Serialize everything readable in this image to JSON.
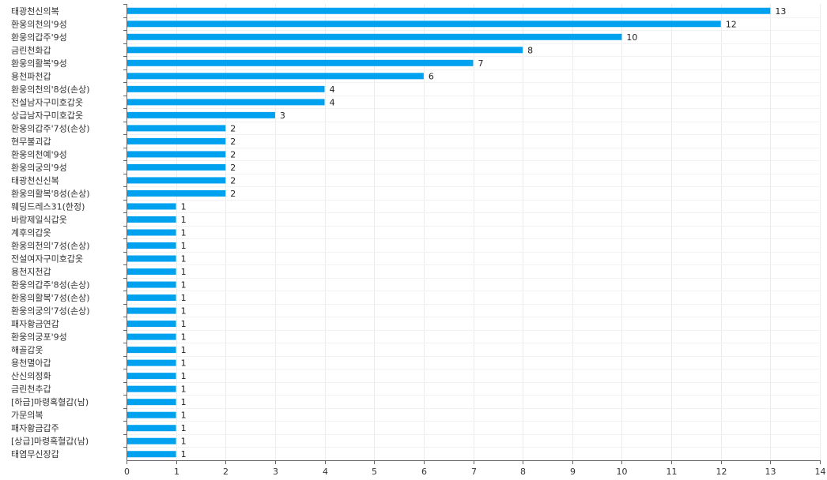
{
  "chart_data": {
    "type": "bar",
    "orientation": "horizontal",
    "categories": [
      "태광천신의복",
      "환웅의천의'9성",
      "환웅의갑주'9성",
      "금린천화갑",
      "환웅의활복'9성",
      "용천파천갑",
      "환웅의천의'8성(손상)",
      "전설남자구미호갑옷",
      "상급남자구미호갑옷",
      "환웅의갑주'7성(손상)",
      "현무불괴갑",
      "환웅의천예'9성",
      "환웅의궁의'9성",
      "태광천신신복",
      "환웅의활복'8성(손상)",
      "웨딩드레스31(한정)",
      "바람제일식갑옷",
      "계후의갑옷",
      "환웅의천의'7성(손상)",
      "전설여자구미호갑옷",
      "용천지천갑",
      "환웅의갑주'8성(손상)",
      "환웅의활복'7성(손상)",
      "환웅의궁의'7성(손상)",
      "패자황금연갑",
      "환웅의궁포'9성",
      "해골갑옷",
      "용천멸아갑",
      "산신의정화",
      "금린천추갑",
      "[하급]마령혹혈갑(남)",
      "가문의복",
      "패자황금갑주",
      "[상급]마령혹혈갑(남)",
      "태염무신장갑"
    ],
    "values": [
      13,
      12,
      10,
      8,
      7,
      6,
      4,
      4,
      3,
      2,
      2,
      2,
      2,
      2,
      2,
      1,
      1,
      1,
      1,
      1,
      1,
      1,
      1,
      1,
      1,
      1,
      1,
      1,
      1,
      1,
      1,
      1,
      1,
      1,
      1
    ],
    "xlim": [
      0,
      14
    ],
    "xticks": [
      0,
      1,
      2,
      3,
      4,
      5,
      6,
      7,
      8,
      9,
      10,
      11,
      12,
      13,
      14
    ],
    "grid": true,
    "data_labels": true,
    "bar_color": "#00a2f0",
    "title": "",
    "xlabel": "",
    "ylabel": ""
  }
}
